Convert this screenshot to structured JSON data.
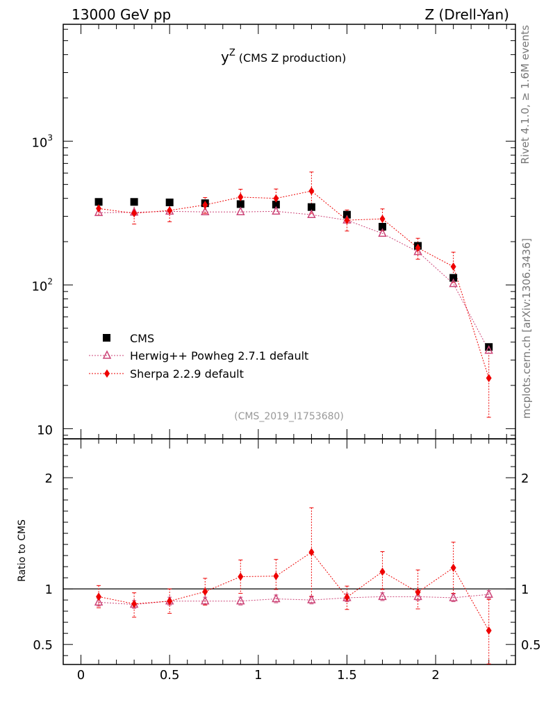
{
  "header": {
    "left": "13000 GeV pp",
    "right": "Z (Drell-Yan)"
  },
  "side_labels": {
    "rivet": "Rivet 4.1.0, ≥ 1.6M events",
    "mcplots": "mcplots.cern.ch [arXiv:1306.3436]"
  },
  "chart_data": {
    "type": "scatter",
    "title_main": "y",
    "title_sup": "Z",
    "title_rest": "(CMS Z production)",
    "analysis_id": "(CMS_2019_I1753680)",
    "x": [
      0.1,
      0.3,
      0.5,
      0.7,
      0.9,
      1.1,
      1.3,
      1.5,
      1.7,
      1.9,
      2.1,
      2.3
    ],
    "xlim": [
      -0.1,
      2.45
    ],
    "x_ticks": [
      0,
      0.5,
      1,
      1.5,
      2
    ],
    "x_tick_labels": [
      "0",
      "0.5",
      "1",
      "1.5",
      "2"
    ],
    "main": {
      "scale": "log",
      "ylim": [
        8.5,
        6500
      ],
      "y_tick_values": [
        10,
        100,
        1000
      ],
      "y_tick_bases": [
        "10",
        "10",
        "10"
      ],
      "y_tick_exps": [
        "",
        "2",
        "3"
      ]
    },
    "ratio": {
      "ylabel": "Ratio to CMS",
      "ylim": [
        0.32,
        2.35
      ],
      "y_ticks": [
        0.5,
        1,
        2
      ],
      "y_tick_labels": [
        "0.5",
        "1",
        "2"
      ],
      "reference_line": 1
    },
    "series": [
      {
        "name": "CMS",
        "role": "data",
        "color": "#000000",
        "marker": "square",
        "values": [
          378,
          378,
          375,
          370,
          365,
          362,
          348,
          308,
          254,
          187,
          112,
          37
        ],
        "ratio": [
          1,
          1,
          1,
          1,
          1,
          1,
          1,
          1,
          1,
          1,
          1,
          1
        ]
      },
      {
        "name": "Herwig++ Powheg 2.7.1 default",
        "role": "mc",
        "color": "#cc4477",
        "marker": "triangle",
        "values": [
          318,
          320,
          325,
          322,
          322,
          325,
          308,
          282,
          228,
          170,
          102,
          35
        ],
        "ratio": [
          0.88,
          0.86,
          0.89,
          0.89,
          0.89,
          0.91,
          0.9,
          0.92,
          0.93,
          0.93,
          0.92,
          0.95
        ],
        "ratio_err": [
          0.035,
          0.035,
          0.035,
          0.035,
          0.035,
          0.035,
          0.035,
          0.035,
          0.035,
          0.035,
          0.035,
          0.035
        ]
      },
      {
        "name": "Sherpa 2.2.9 default",
        "role": "mc",
        "color": "#ee0000",
        "marker": "diamond",
        "values": [
          340,
          315,
          330,
          360,
          408,
          400,
          450,
          282,
          288,
          181,
          134,
          22.5
        ],
        "yerr_low": [
          35,
          50,
          55,
          45,
          55,
          50,
          135,
          45,
          50,
          30,
          30,
          10.5
        ],
        "yerr_high": [
          35,
          50,
          55,
          45,
          55,
          65,
          160,
          50,
          50,
          30,
          35,
          13
        ],
        "ratio": [
          0.93,
          0.865,
          0.89,
          0.975,
          1.11,
          1.115,
          1.33,
          0.925,
          1.155,
          0.97,
          1.19,
          0.625
        ],
        "ratio_err_low": [
          0.1,
          0.12,
          0.11,
          0.12,
          0.15,
          0.12,
          0.4,
          0.11,
          0.16,
          0.15,
          0.23,
          0.3
        ],
        "ratio_err_high": [
          0.1,
          0.1,
          0.11,
          0.12,
          0.15,
          0.15,
          0.4,
          0.1,
          0.18,
          0.2,
          0.23,
          0.28
        ]
      }
    ]
  }
}
